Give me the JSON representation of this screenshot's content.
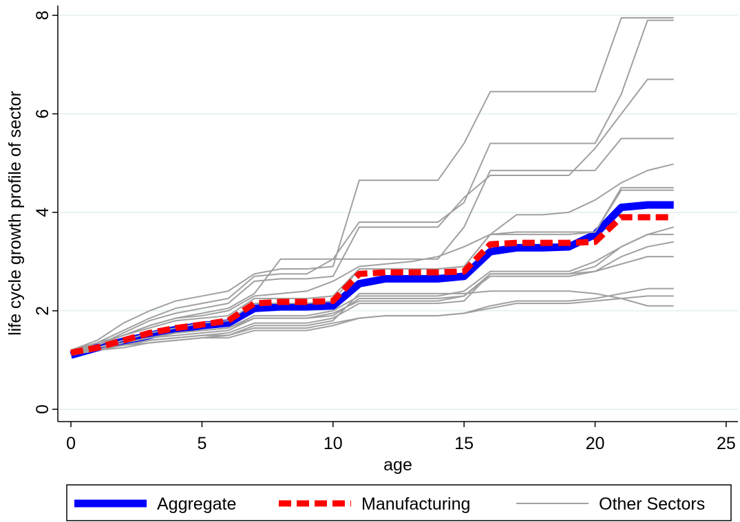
{
  "chart_data": {
    "type": "line",
    "x_label": "age",
    "y_label": "life cycle growth profile of sector",
    "x": [
      0,
      1,
      2,
      3,
      4,
      5,
      6,
      7,
      8,
      9,
      10,
      11,
      12,
      13,
      14,
      15,
      16,
      17,
      18,
      19,
      20,
      21,
      22,
      23
    ],
    "xlim": [
      -0.5,
      25.45
    ],
    "xticks": [
      0,
      5,
      10,
      15,
      20,
      25
    ],
    "ylim": [
      -0.25,
      8.2
    ],
    "yticks": [
      0,
      2,
      4,
      6,
      8
    ],
    "grid": true,
    "legend": "bottom",
    "series": [
      {
        "name": "Aggregate",
        "color": "#0000ff",
        "style": "solid-thick",
        "values": [
          1.1,
          1.25,
          1.38,
          1.5,
          1.62,
          1.7,
          1.75,
          2.05,
          2.08,
          2.08,
          2.1,
          2.55,
          2.65,
          2.65,
          2.65,
          2.7,
          3.2,
          3.28,
          3.28,
          3.3,
          3.55,
          4.1,
          4.15,
          4.15
        ]
      },
      {
        "name": "Manufacturing",
        "color": "#ff0000",
        "style": "dashed",
        "values": [
          1.15,
          1.25,
          1.4,
          1.55,
          1.65,
          1.72,
          1.8,
          2.15,
          2.18,
          2.18,
          2.2,
          2.75,
          2.78,
          2.78,
          2.78,
          2.8,
          3.35,
          3.38,
          3.38,
          3.38,
          3.4,
          3.9,
          3.9,
          3.9
        ]
      },
      {
        "name": "Other Sectors",
        "color": "#a0a0a0",
        "style": "thin",
        "values": [
          [
            1.2,
            1.4,
            1.75,
            2.0,
            2.2,
            2.3,
            2.4,
            2.75,
            2.85,
            2.85,
            2.9,
            4.65,
            4.65,
            4.65,
            4.65,
            5.4,
            6.45,
            6.45,
            6.45,
            6.45,
            6.45,
            7.95,
            7.95,
            7.95
          ],
          [
            1.15,
            1.35,
            1.6,
            1.85,
            2.05,
            2.15,
            2.25,
            2.7,
            2.75,
            2.75,
            3.05,
            3.8,
            3.8,
            3.8,
            3.8,
            4.2,
            5.4,
            5.4,
            5.4,
            5.4,
            5.4,
            6.4,
            7.9,
            7.9
          ],
          [
            1.2,
            1.3,
            1.55,
            1.8,
            1.95,
            2.05,
            2.15,
            2.6,
            2.65,
            2.65,
            2.7,
            3.7,
            3.7,
            3.7,
            3.7,
            4.3,
            4.75,
            4.75,
            4.75,
            4.75,
            5.3,
            6.0,
            6.7,
            6.7
          ],
          [
            1.1,
            1.3,
            1.5,
            1.7,
            1.85,
            1.95,
            2.05,
            2.35,
            3.05,
            3.05,
            3.05,
            3.05,
            3.05,
            3.05,
            3.05,
            3.7,
            4.85,
            4.85,
            4.85,
            4.85,
            4.85,
            5.5,
            5.5,
            5.5
          ],
          [
            1.15,
            1.3,
            1.5,
            1.7,
            1.85,
            1.9,
            2.0,
            2.3,
            2.35,
            2.4,
            2.6,
            2.9,
            2.95,
            3.0,
            3.1,
            3.3,
            3.55,
            3.95,
            3.95,
            4.0,
            4.25,
            4.6,
            4.85,
            4.98
          ],
          [
            1.2,
            1.35,
            1.5,
            1.65,
            1.8,
            1.85,
            1.9,
            2.25,
            2.25,
            2.25,
            2.3,
            2.85,
            2.85,
            2.85,
            2.85,
            2.9,
            3.55,
            3.55,
            3.55,
            3.55,
            3.6,
            4.5,
            4.5,
            4.5
          ],
          [
            1.1,
            1.25,
            1.4,
            1.55,
            1.65,
            1.75,
            1.8,
            2.15,
            2.15,
            2.15,
            2.2,
            2.85,
            2.85,
            2.85,
            2.85,
            2.9,
            3.55,
            3.6,
            3.6,
            3.6,
            3.6,
            4.45,
            4.45,
            4.45
          ],
          [
            1.15,
            1.25,
            1.35,
            1.45,
            1.55,
            1.6,
            1.65,
            1.9,
            1.9,
            1.9,
            2.0,
            2.3,
            2.3,
            2.3,
            2.3,
            2.4,
            2.8,
            2.8,
            2.8,
            2.8,
            3.0,
            3.3,
            3.55,
            3.7
          ],
          [
            1.1,
            1.2,
            1.35,
            1.45,
            1.5,
            1.55,
            1.6,
            1.85,
            1.85,
            1.85,
            1.9,
            2.25,
            2.25,
            2.25,
            2.25,
            2.3,
            2.75,
            2.75,
            2.75,
            2.75,
            2.9,
            3.3,
            3.55,
            3.55
          ],
          [
            1.15,
            1.25,
            1.35,
            1.45,
            1.55,
            1.6,
            1.65,
            1.85,
            1.85,
            1.85,
            1.95,
            2.2,
            2.2,
            2.2,
            2.2,
            2.3,
            2.7,
            2.7,
            2.7,
            2.7,
            2.8,
            3.1,
            3.3,
            3.4
          ],
          [
            1.1,
            1.2,
            1.3,
            1.4,
            1.45,
            1.5,
            1.55,
            1.75,
            1.75,
            1.75,
            1.85,
            2.15,
            2.15,
            2.15,
            2.15,
            2.2,
            2.75,
            2.75,
            2.75,
            2.75,
            2.8,
            2.95,
            3.1,
            3.1
          ],
          [
            1.1,
            1.2,
            1.3,
            1.35,
            1.4,
            1.45,
            1.5,
            1.7,
            1.7,
            1.7,
            1.8,
            2.35,
            2.35,
            2.35,
            2.35,
            2.35,
            2.4,
            2.4,
            2.4,
            2.4,
            2.35,
            2.25,
            2.1,
            2.1
          ],
          [
            1.15,
            1.2,
            1.3,
            1.4,
            1.45,
            1.5,
            1.5,
            1.65,
            1.65,
            1.65,
            1.75,
            1.85,
            1.9,
            1.9,
            1.9,
            1.95,
            2.1,
            2.2,
            2.2,
            2.2,
            2.25,
            2.35,
            2.45,
            2.45
          ],
          [
            1.1,
            1.2,
            1.25,
            1.35,
            1.4,
            1.45,
            1.45,
            1.6,
            1.6,
            1.6,
            1.7,
            1.85,
            1.9,
            1.9,
            1.9,
            1.95,
            2.05,
            2.15,
            2.15,
            2.15,
            2.2,
            2.25,
            2.3,
            2.3
          ]
        ]
      }
    ]
  }
}
